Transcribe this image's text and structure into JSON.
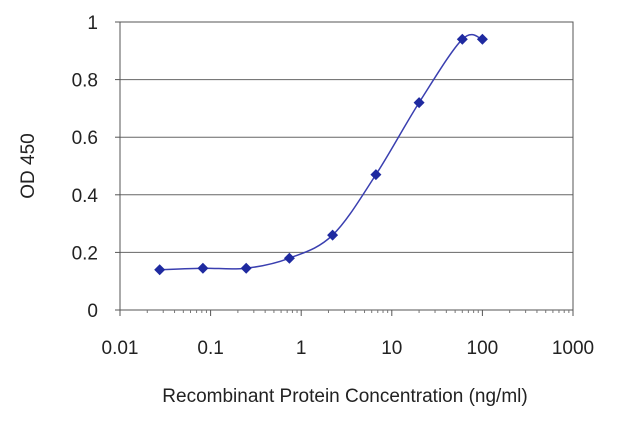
{
  "chart_data": {
    "type": "scatter",
    "title": "",
    "xlabel": "Recombinant Protein Concentration (ng/ml)",
    "ylabel": "OD 450",
    "x_scale": "log",
    "xlim": [
      0.01,
      1000
    ],
    "ylim": [
      0,
      1
    ],
    "x_ticks": [
      0.01,
      0.1,
      1,
      10,
      100,
      1000
    ],
    "x_tick_labels": [
      "0.01",
      "0.1",
      "1",
      "10",
      "100",
      "1000"
    ],
    "y_ticks": [
      0,
      0.2,
      0.4,
      0.6,
      0.8,
      1
    ],
    "y_tick_labels": [
      "0",
      "0.2",
      "0.4",
      "0.6",
      "0.8",
      "1"
    ],
    "grid": "horizontal",
    "legend": "none",
    "series": [
      {
        "x": [
          0.0274,
          0.0823,
          0.247,
          0.741,
          2.22,
          6.67,
          20,
          60,
          100
        ],
        "y": [
          0.14,
          0.145,
          0.145,
          0.18,
          0.26,
          0.47,
          0.72,
          0.94,
          0.94
        ],
        "marker": "diamond",
        "color": "#1f2aa0",
        "curve": "sigmoid-fit"
      }
    ]
  }
}
